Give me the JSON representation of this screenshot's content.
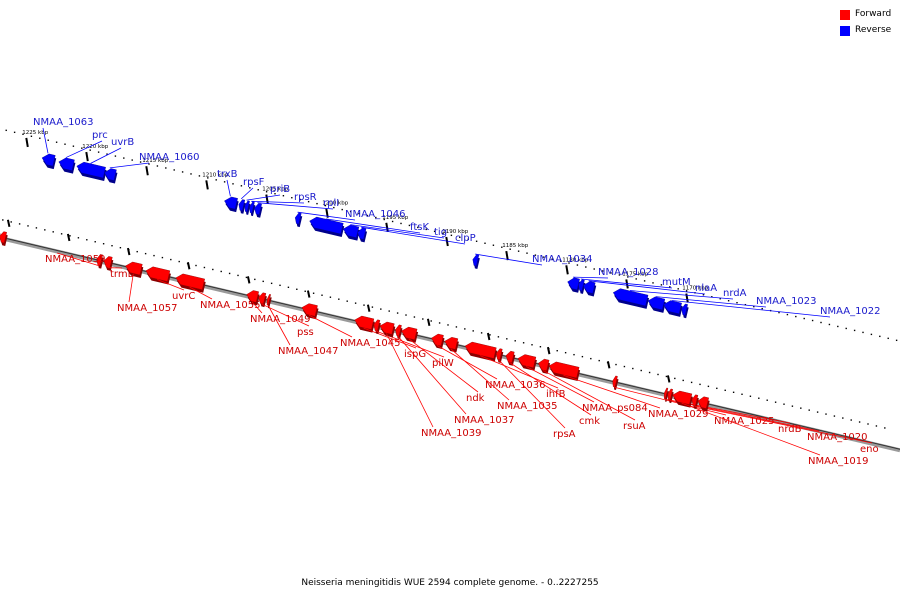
{
  "title": "Neisseria meningitidis WUE 2594 complete genome. - 0..2227255",
  "colors": {
    "forward": "#ff0000",
    "reverse": "#0000ff",
    "forward_label": "#cc0000",
    "reverse_label": "#1a1acc",
    "axis": "#8a8a8a"
  },
  "legend": [
    {
      "label": "Forward",
      "color": "#ff0000"
    },
    {
      "label": "Reverse",
      "color": "#0000ff"
    }
  ],
  "ticks": [
    {
      "label": "1225 kbp",
      "kbp": 1225
    },
    {
      "label": "1220 kbp",
      "kbp": 1220
    },
    {
      "label": "1215 kbp",
      "kbp": 1215
    },
    {
      "label": "1210 kbp",
      "kbp": 1210
    },
    {
      "label": "1205 kbp",
      "kbp": 1205
    },
    {
      "label": "1200 kbp",
      "kbp": 1200
    },
    {
      "label": "1195 kbp",
      "kbp": 1195
    },
    {
      "label": "1190 kbp",
      "kbp": 1190
    },
    {
      "label": "1185 kbp",
      "kbp": 1185
    },
    {
      "label": "1180 kbp",
      "kbp": 1180
    },
    {
      "label": "1175 kbp",
      "kbp": 1175
    },
    {
      "label": "1170 kbp",
      "kbp": 1170
    }
  ],
  "reverse_genes": [
    {
      "label": "NMAA_1063",
      "start": 1223.5,
      "end": 1222.5
    },
    {
      "label": "prc",
      "start": 1222.1,
      "end": 1220.9
    },
    {
      "label": "uvrB",
      "start": 1220.6,
      "end": 1218.3
    },
    {
      "label": "NMAA_1060",
      "start": 1218.3,
      "end": 1217.4
    },
    {
      "label": "trxB",
      "start": 1208.3,
      "end": 1207.3
    },
    {
      "label": "rpsF",
      "start": 1207.1,
      "end": 1206.7
    },
    {
      "label": "priB",
      "start": 1206.6,
      "end": 1206.3
    },
    {
      "label": "rpsR",
      "start": 1206.2,
      "end": 1205.9
    },
    {
      "label": "rplI",
      "start": 1205.8,
      "end": 1205.3
    },
    {
      "label": "NMAA_1046",
      "start": 1202.4,
      "end": 1202.0
    },
    {
      "label": "ftsK",
      "start": 1201.2,
      "end": 1198.5
    },
    {
      "label": "tig",
      "start": 1198.4,
      "end": 1197.2
    },
    {
      "label": "clpP",
      "start": 1197.2,
      "end": 1196.6
    },
    {
      "label": "NMAA_1034",
      "start": 1187.6,
      "end": 1187.2
    },
    {
      "label": "NMAA_1028",
      "start": 1179.7,
      "end": 1178.8
    },
    {
      "label": "mutM",
      "start": 1178.8,
      "end": 1178.4
    },
    {
      "label": "nlaA",
      "start": 1178.4,
      "end": 1177.5
    },
    {
      "label": "nrdA",
      "start": 1175.9,
      "end": 1173.1
    },
    {
      "label": "NMAA_1023",
      "start": 1173.0,
      "end": 1171.7
    },
    {
      "label": "NMAA_1022",
      "start": 1171.7,
      "end": 1170.3
    },
    {
      "label": "",
      "start": 1170.2,
      "end": 1169.8
    }
  ],
  "forward_genes": [
    {
      "label": "NMAA_1059",
      "start": 1216.9,
      "end": 1217.3
    },
    {
      "label": "trmB",
      "start": 1216.1,
      "end": 1216.7
    },
    {
      "label": "NMAA_1057",
      "start": 1213.6,
      "end": 1214.9
    },
    {
      "label": "uvrC",
      "start": 1211.3,
      "end": 1213.2
    },
    {
      "label": "NMAA_1055",
      "start": 1208.4,
      "end": 1210.7
    },
    {
      "label": "NMAA_1049",
      "start": 1203.9,
      "end": 1204.8
    },
    {
      "label": "pss",
      "start": 1203.3,
      "end": 1203.8
    },
    {
      "label": "NMAA_1047",
      "start": 1202.9,
      "end": 1203.1
    },
    {
      "label": "NMAA_1045",
      "start": 1199.0,
      "end": 1200.2
    },
    {
      "label": "ispG",
      "start": 1194.3,
      "end": 1195.8
    },
    {
      "label": "pilW",
      "start": 1193.8,
      "end": 1194.2
    },
    {
      "label": "NMAA_1039",
      "start": 1192.6,
      "end": 1193.7
    },
    {
      "label": "NMAA_1037",
      "start": 1192.0,
      "end": 1192.4
    },
    {
      "label": "ndk",
      "start": 1190.7,
      "end": 1191.9
    },
    {
      "label": "NMAA_1036",
      "start": 1188.5,
      "end": 1189.4
    },
    {
      "label": "NMAA_1035",
      "start": 1187.3,
      "end": 1188.3
    },
    {
      "label": "ihfB",
      "start": 1184.1,
      "end": 1186.6
    },
    {
      "label": "rpsA",
      "start": 1183.6,
      "end": 1184.0
    },
    {
      "label": "cmk",
      "start": 1182.6,
      "end": 1183.2
    },
    {
      "label": "NMAA_ps084",
      "start": 1180.8,
      "end": 1182.2
    },
    {
      "label": "rsuA",
      "start": 1179.7,
      "end": 1180.5
    },
    {
      "label": "NMAA_1029",
      "start": 1177.2,
      "end": 1179.6
    },
    {
      "label": "NMAA_1025",
      "start": 1174.0,
      "end": 1174.3
    },
    {
      "label": "nrdB",
      "start": 1169.8,
      "end": 1170.0
    },
    {
      "label": "NMAA_1020",
      "start": 1169.4,
      "end": 1169.7
    },
    {
      "label": "NMAA_1019",
      "start": 1167.8,
      "end": 1169.3
    },
    {
      "label": "eno",
      "start": 1167.3,
      "end": 1167.7
    },
    {
      "label": "",
      "start": 1166.4,
      "end": 1167.2
    },
    {
      "label": "",
      "start": 1226.4,
      "end": 1227.0
    },
    {
      "label": "",
      "start": 1225.5,
      "end": 1226.3
    },
    {
      "label": "",
      "start": 1224.9,
      "end": 1225.4
    }
  ]
}
